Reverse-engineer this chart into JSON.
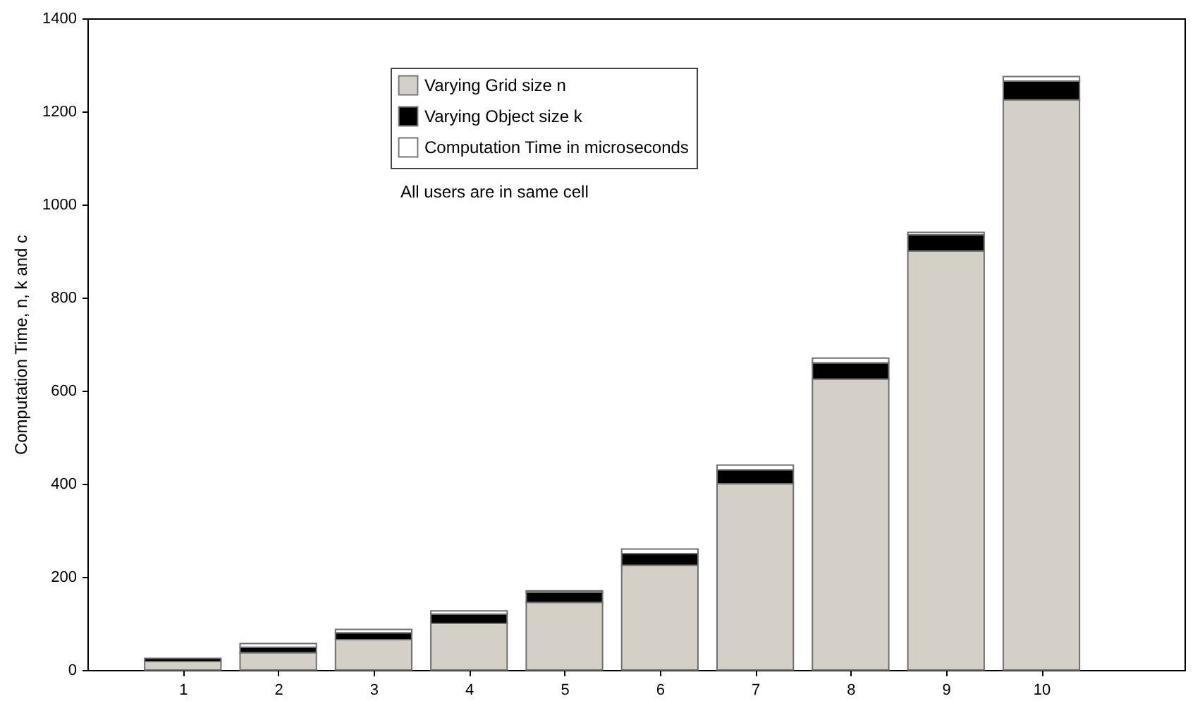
{
  "chart_data": {
    "type": "bar",
    "stacked": true,
    "ylabel": "Computation Time, n, k and c",
    "x": [
      1,
      2,
      3,
      4,
      5,
      6,
      7,
      8,
      9,
      10
    ],
    "xlim": [
      0,
      11.5
    ],
    "xticks": [
      1,
      2,
      3,
      4,
      5,
      6,
      7,
      8,
      9,
      10
    ],
    "ylim": [
      0,
      1400
    ],
    "yticks": [
      0,
      200,
      400,
      600,
      800,
      1000,
      1200,
      1400
    ],
    "series": [
      {
        "name": "Varying Grid size n",
        "color": "#d4d0c8",
        "values": [
          18,
          37,
          65,
          100,
          145,
          225,
          400,
          625,
          900,
          1225
        ]
      },
      {
        "name": "Varying Object size k",
        "color": "#000000",
        "values": [
          7,
          12,
          15,
          20,
          22,
          25,
          30,
          35,
          35,
          40
        ]
      },
      {
        "name": "Computation Time in microseconds",
        "color": "#ffffff",
        "values": [
          null,
          8,
          7,
          7,
          3,
          10,
          10,
          10,
          5,
          10
        ]
      }
    ],
    "legend": "top",
    "grid": false,
    "annotations": [
      "All users are in same cell"
    ]
  }
}
